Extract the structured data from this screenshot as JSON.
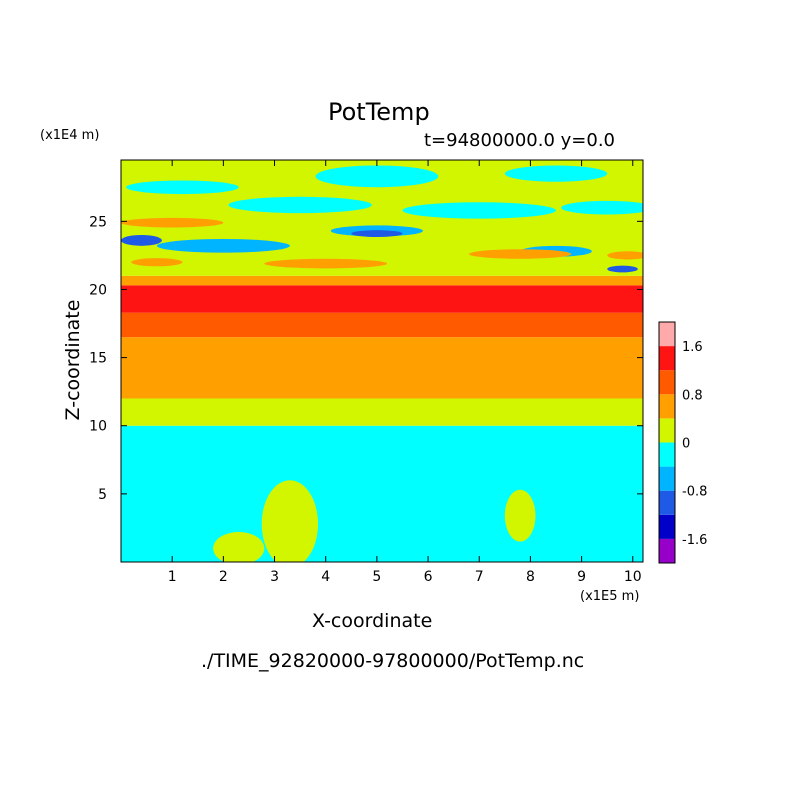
{
  "chart_data": {
    "type": "heatmap",
    "title": "PotTemp",
    "subtitle": "t=94800000.0 y=0.0",
    "xlabel": "X-coordinate",
    "ylabel": "Z-coordinate",
    "x_unit": "(x1E5 m)",
    "y_unit": "(x1E4 m)",
    "xlim": [
      0,
      10.2
    ],
    "ylim": [
      0,
      29.5
    ],
    "x_ticks": [
      "1",
      "2",
      "3",
      "4",
      "5",
      "6",
      "7",
      "8",
      "9",
      "10"
    ],
    "y_ticks": [
      "5",
      "10",
      "15",
      "20",
      "25"
    ],
    "colorbar": {
      "levels": [
        -2.0,
        -1.6,
        -1.2,
        -0.8,
        -0.4,
        0.0,
        0.4,
        0.8,
        1.2,
        1.6,
        2.0
      ],
      "colors": [
        "#9600c8",
        "#0000c8",
        "#1e5ae6",
        "#00b4ff",
        "#00ffff",
        "#d2f500",
        "#ffa000",
        "#ff5a00",
        "#ff1414",
        "#ffaaaa"
      ],
      "labels": [
        "1.6",
        "0.8",
        "0",
        "-0.8",
        "-1.6"
      ]
    },
    "bands": [
      {
        "z_min": 0,
        "z_max": 10,
        "value": -0.2
      },
      {
        "z_min": 10,
        "z_max": 12,
        "value": 0.2
      },
      {
        "z_min": 12,
        "z_max": 16.5,
        "value": 0.6
      },
      {
        "z_min": 16.5,
        "z_max": 18.3,
        "value": 1.0
      },
      {
        "z_min": 18.3,
        "z_max": 20.3,
        "value": 1.4
      },
      {
        "z_min": 20.3,
        "z_max": 21,
        "value": 0.6
      },
      {
        "z_min": 21,
        "z_max": 29.5,
        "value": 0.2
      }
    ],
    "features": [
      {
        "x": 3.3,
        "z": 2.8,
        "rx": 0.55,
        "rz": 3.2,
        "value": 0.2
      },
      {
        "x": 2.3,
        "z": 1.0,
        "rx": 0.5,
        "rz": 1.2,
        "value": 0.2
      },
      {
        "x": 7.8,
        "z": 3.4,
        "rx": 0.3,
        "rz": 1.9,
        "value": 0.2
      },
      {
        "x": 2.0,
        "z": 23.2,
        "rx": 1.3,
        "rz": 0.5,
        "value": -0.6
      },
      {
        "x": 5.0,
        "z": 24.3,
        "rx": 0.9,
        "rz": 0.4,
        "value": -0.6
      },
      {
        "x": 8.5,
        "z": 22.8,
        "rx": 0.7,
        "rz": 0.4,
        "value": -0.6
      },
      {
        "x": 0.4,
        "z": 23.6,
        "rx": 0.4,
        "rz": 0.4,
        "value": -1.0
      },
      {
        "x": 5.0,
        "z": 24.1,
        "rx": 0.5,
        "rz": 0.25,
        "value": -1.0
      },
      {
        "x": 9.8,
        "z": 21.5,
        "rx": 0.3,
        "rz": 0.25,
        "value": -1.0
      },
      {
        "x": 1.0,
        "z": 24.9,
        "rx": 1.0,
        "rz": 0.35,
        "value": 0.6
      },
      {
        "x": 0.7,
        "z": 22.0,
        "rx": 0.5,
        "rz": 0.3,
        "value": 0.6
      },
      {
        "x": 4.0,
        "z": 21.9,
        "rx": 1.2,
        "rz": 0.35,
        "value": 0.6
      },
      {
        "x": 7.8,
        "z": 22.6,
        "rx": 1.0,
        "rz": 0.35,
        "value": 0.6
      },
      {
        "x": 9.9,
        "z": 22.5,
        "rx": 0.4,
        "rz": 0.3,
        "value": 0.6
      },
      {
        "x": 5.0,
        "z": 28.3,
        "rx": 1.2,
        "rz": 0.8,
        "value": -0.2
      },
      {
        "x": 8.5,
        "z": 28.5,
        "rx": 1.0,
        "rz": 0.6,
        "value": -0.2
      },
      {
        "x": 3.5,
        "z": 26.2,
        "rx": 1.4,
        "rz": 0.6,
        "value": -0.2
      },
      {
        "x": 7.0,
        "z": 25.8,
        "rx": 1.5,
        "rz": 0.6,
        "value": -0.2
      },
      {
        "x": 1.2,
        "z": 27.5,
        "rx": 1.1,
        "rz": 0.5,
        "value": -0.2
      },
      {
        "x": 9.5,
        "z": 26.0,
        "rx": 0.9,
        "rz": 0.5,
        "value": -0.2
      }
    ]
  },
  "file_path": "./TIME_92820000-97800000/PotTemp.nc"
}
